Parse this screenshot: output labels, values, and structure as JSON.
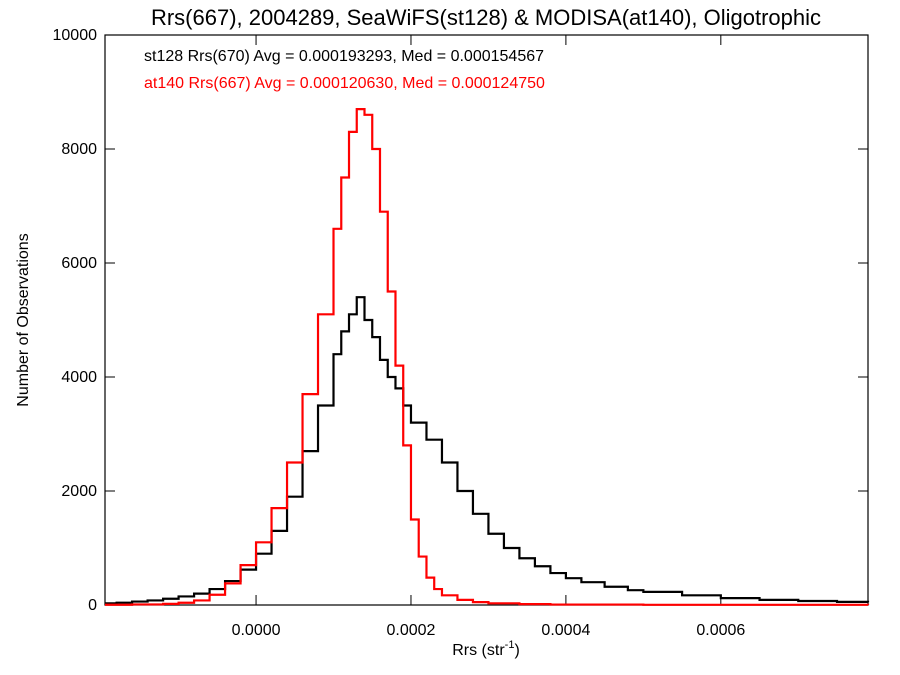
{
  "chart_data": {
    "type": "line",
    "title": "Rrs(667), 2004289, SeaWiFS(st128) & MODISA(at140), Oligotrophic",
    "xlabel": "Rrs (str",
    "xlabel_sup": "-1",
    "xlabel_close": ")",
    "ylabel": "Number of Observations",
    "xlim": [
      -0.000195,
      0.00079
    ],
    "ylim": [
      0,
      10000
    ],
    "x_ticks": [
      0.0,
      0.0002,
      0.0004,
      0.0006
    ],
    "x_tick_labels": [
      "0.0000",
      "0.0002",
      "0.0004",
      "0.0006"
    ],
    "y_ticks": [
      0,
      2000,
      4000,
      6000,
      8000,
      10000
    ],
    "y_tick_labels": [
      "0",
      "2000",
      "4000",
      "6000",
      "8000",
      "10000"
    ],
    "grid": false,
    "legend_position": "top-left",
    "style": "histogram-step",
    "colors": {
      "st128": "#000000",
      "at140": "#ff0000"
    },
    "annotations": [
      {
        "id": "st128",
        "text": "st128 Rrs(670) Avg = 0.000193293, Med = 0.000154567",
        "color": "#000000"
      },
      {
        "id": "at140",
        "text": "at140 Rrs(667) Avg = 0.000120630, Med = 0.000124750",
        "color": "#ff0000"
      }
    ],
    "series": [
      {
        "name": "st128",
        "color": "#000000",
        "points": [
          [
            -0.000195,
            30
          ],
          [
            -0.00018,
            40
          ],
          [
            -0.00016,
            60
          ],
          [
            -0.00014,
            80
          ],
          [
            -0.00012,
            110
          ],
          [
            -0.0001,
            150
          ],
          [
            -8e-05,
            200
          ],
          [
            -6e-05,
            280
          ],
          [
            -4e-05,
            420
          ],
          [
            -2e-05,
            620
          ],
          [
            0.0,
            900
          ],
          [
            2e-05,
            1300
          ],
          [
            4e-05,
            1900
          ],
          [
            6e-05,
            2700
          ],
          [
            8e-05,
            3500
          ],
          [
            0.0001,
            4400
          ],
          [
            0.00011,
            4800
          ],
          [
            0.00012,
            5100
          ],
          [
            0.00013,
            5400
          ],
          [
            0.00014,
            5000
          ],
          [
            0.00015,
            4700
          ],
          [
            0.00016,
            4300
          ],
          [
            0.00017,
            4000
          ],
          [
            0.00018,
            3800
          ],
          [
            0.00019,
            3500
          ],
          [
            0.0002,
            3200
          ],
          [
            0.00022,
            2900
          ],
          [
            0.00024,
            2500
          ],
          [
            0.00026,
            2000
          ],
          [
            0.00028,
            1600
          ],
          [
            0.0003,
            1250
          ],
          [
            0.00032,
            1000
          ],
          [
            0.00034,
            820
          ],
          [
            0.00036,
            680
          ],
          [
            0.00038,
            560
          ],
          [
            0.0004,
            470
          ],
          [
            0.00042,
            400
          ],
          [
            0.00045,
            320
          ],
          [
            0.00048,
            260
          ],
          [
            0.0005,
            230
          ],
          [
            0.00055,
            170
          ],
          [
            0.0006,
            120
          ],
          [
            0.00065,
            90
          ],
          [
            0.0007,
            70
          ],
          [
            0.00075,
            55
          ],
          [
            0.00079,
            45
          ]
        ]
      },
      {
        "name": "at140",
        "color": "#ff0000",
        "points": [
          [
            -0.000195,
            5
          ],
          [
            -0.00016,
            10
          ],
          [
            -0.00012,
            20
          ],
          [
            -0.0001,
            40
          ],
          [
            -8e-05,
            80
          ],
          [
            -6e-05,
            180
          ],
          [
            -4e-05,
            380
          ],
          [
            -2e-05,
            700
          ],
          [
            0.0,
            1100
          ],
          [
            2e-05,
            1700
          ],
          [
            4e-05,
            2500
          ],
          [
            6e-05,
            3700
          ],
          [
            8e-05,
            5100
          ],
          [
            0.0001,
            6600
          ],
          [
            0.00011,
            7500
          ],
          [
            0.00012,
            8300
          ],
          [
            0.00013,
            8700
          ],
          [
            0.00014,
            8600
          ],
          [
            0.00015,
            8000
          ],
          [
            0.00016,
            6900
          ],
          [
            0.00017,
            5500
          ],
          [
            0.00018,
            4200
          ],
          [
            0.00019,
            2800
          ],
          [
            0.0002,
            1500
          ],
          [
            0.00021,
            850
          ],
          [
            0.00022,
            480
          ],
          [
            0.00023,
            280
          ],
          [
            0.00024,
            170
          ],
          [
            0.00026,
            90
          ],
          [
            0.00028,
            50
          ],
          [
            0.0003,
            30
          ],
          [
            0.00034,
            15
          ],
          [
            0.00038,
            8
          ],
          [
            0.0005,
            3
          ],
          [
            0.00079,
            0
          ]
        ]
      }
    ]
  }
}
